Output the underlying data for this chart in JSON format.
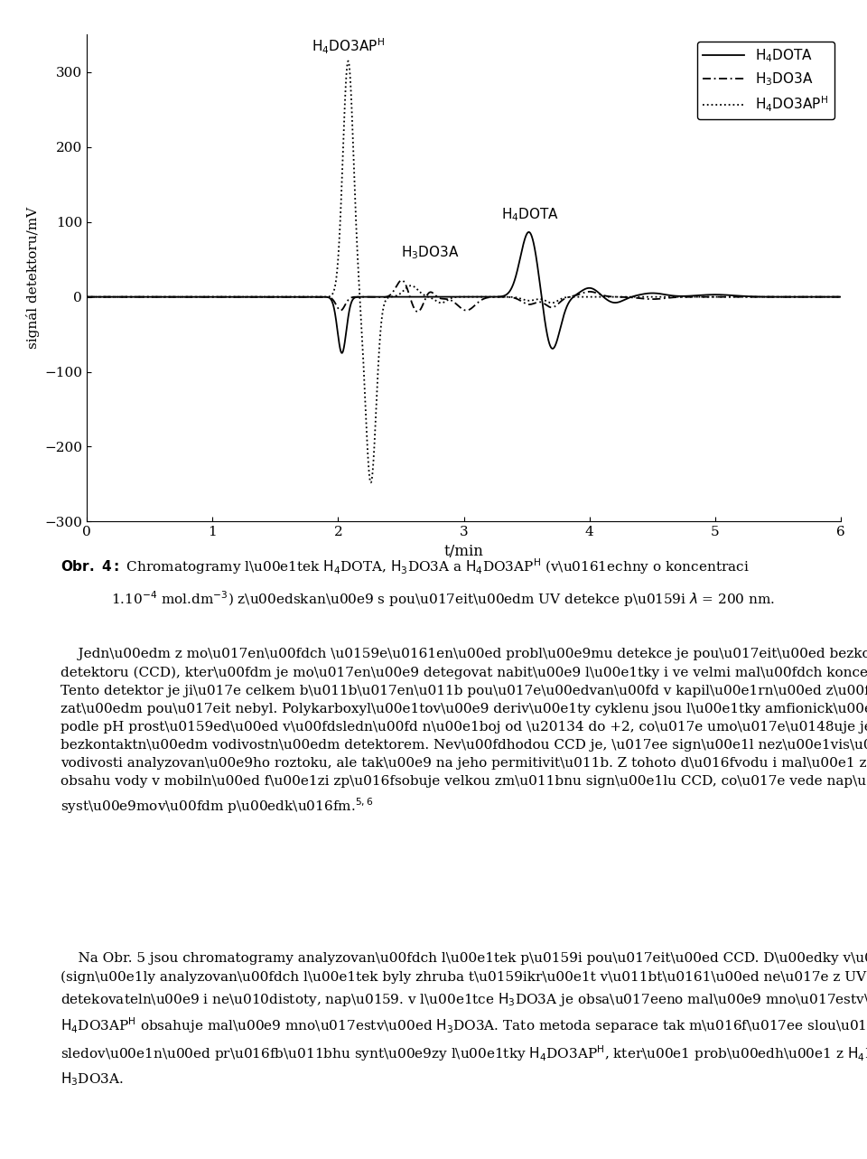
{
  "xlabel": "t/min",
  "ylabel": "signál detektoru/mV",
  "xlim": [
    0,
    6
  ],
  "ylim": [
    -300,
    350
  ],
  "yticks": [
    -300,
    -200,
    -100,
    0,
    100,
    200,
    300
  ],
  "xticks": [
    0,
    1,
    2,
    3,
    4,
    5,
    6
  ],
  "figure_bg": "white",
  "plot_height_ratio": 0.42,
  "font_size": 11.5,
  "font_family": "DejaVu Serif"
}
